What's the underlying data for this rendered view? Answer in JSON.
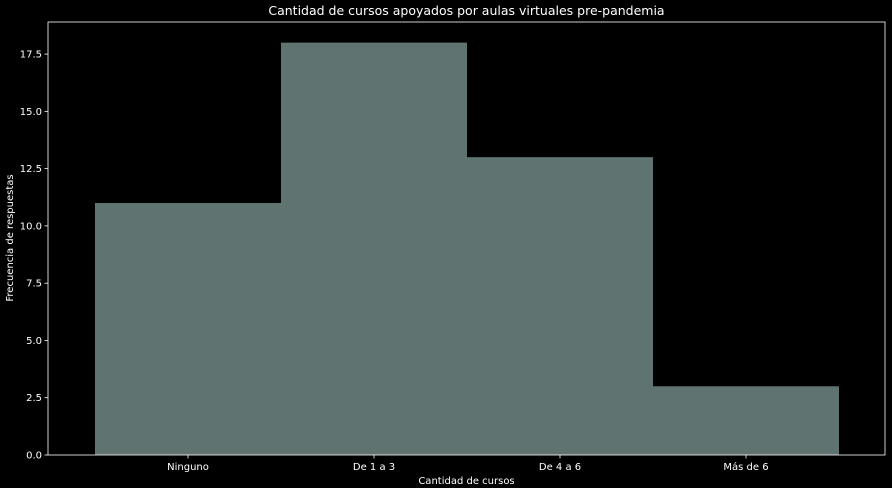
{
  "chart_data": {
    "type": "bar",
    "title": "Cantidad de cursos apoyados por aulas virtuales pre-pandemia",
    "xlabel": "Cantidad de cursos",
    "ylabel": "Frecuencia de respuestas",
    "categories": [
      "Ninguno",
      "De 1 a 3",
      "De 4 a 6",
      "Más de 6"
    ],
    "values": [
      11,
      18,
      13,
      3
    ],
    "ylim": [
      0,
      18.9
    ],
    "yticks": [
      0.0,
      2.5,
      5.0,
      7.5,
      10.0,
      12.5,
      15.0,
      17.5
    ],
    "ytick_labels": [
      "0.0",
      "2.5",
      "5.0",
      "7.5",
      "10.0",
      "12.5",
      "15.0",
      "17.5"
    ],
    "bar_color": "#5f7470",
    "background_color": "#000000",
    "text_color": "#ffffff",
    "grid": false,
    "legend": "none"
  }
}
